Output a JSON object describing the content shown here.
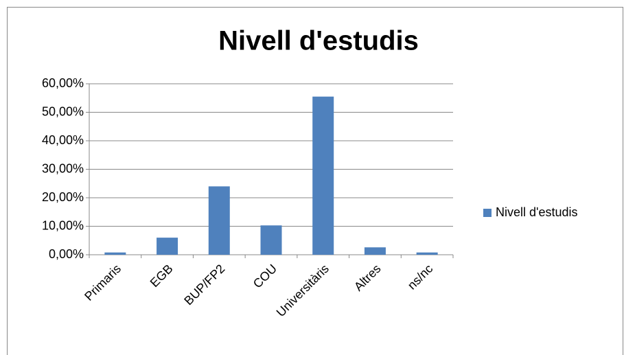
{
  "chart_data": {
    "type": "bar",
    "title": "Nivell d'estudis",
    "categories": [
      "Primaris",
      "EGB",
      "BUP/FP2",
      "COU",
      "Universitàris",
      "Altres",
      "ns/nc"
    ],
    "series": [
      {
        "name": "Nivell d'estudis",
        "color": "#4f81bd",
        "values": [
          0.8,
          6.0,
          24.0,
          10.3,
          55.5,
          2.6,
          0.8
        ]
      }
    ],
    "ylim": [
      0,
      60
    ],
    "yticks": [
      {
        "value": 0,
        "label": "0,00%"
      },
      {
        "value": 10,
        "label": "10,00%"
      },
      {
        "value": 20,
        "label": "20,00%"
      },
      {
        "value": 30,
        "label": "30,00%"
      },
      {
        "value": 40,
        "label": "40,00%"
      },
      {
        "value": 50,
        "label": "50,00%"
      },
      {
        "value": 60,
        "label": "60,00%"
      }
    ],
    "grid": true,
    "legend": "right"
  }
}
